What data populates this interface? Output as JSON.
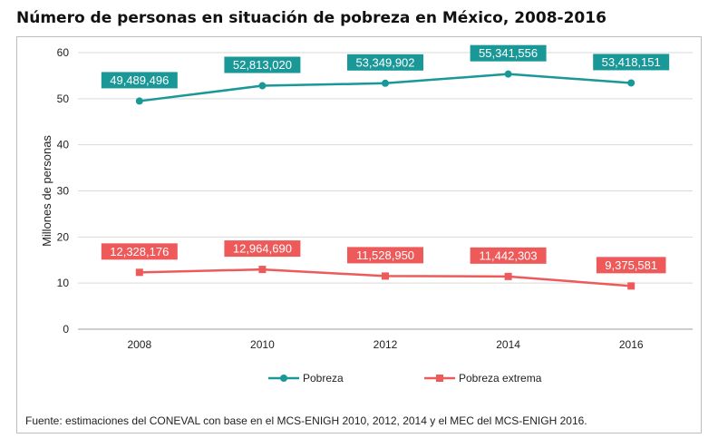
{
  "title": "Número de personas en situación de pobreza en México, 2008-2016",
  "source": "Fuente: estimaciones del CONEVAL con base en el MCS-ENIGH 2010, 2012, 2014 y el MEC del MCS-ENIGH 2016.",
  "chart_data": {
    "type": "line",
    "title": "Número de personas en situación de pobreza en México, 2008-2016",
    "xlabel": "",
    "ylabel": "Millones de personas",
    "categories": [
      "2008",
      "2010",
      "2012",
      "2014",
      "2016"
    ],
    "ylim": [
      0,
      60
    ],
    "yticks": [
      0,
      10,
      20,
      30,
      40,
      50,
      60
    ],
    "grid": true,
    "legend": "bottom",
    "series": [
      {
        "name": "Pobreza",
        "color": "#1a9898",
        "marker": "circle",
        "values": [
          49.489496,
          52.81302,
          53.349902,
          55.341556,
          53.418151
        ],
        "labels": [
          "49,489,496",
          "52,813,020",
          "53,349,902",
          "55,341,556",
          "53,418,151"
        ]
      },
      {
        "name": "Pobreza extrema",
        "color": "#ee5a5a",
        "marker": "square",
        "values": [
          12.328176,
          12.96469,
          11.52895,
          11.442303,
          9.375581
        ],
        "labels": [
          "12,328,176",
          "12,964,690",
          "11,528,950",
          "11,442,303",
          "9,375,581"
        ]
      }
    ]
  }
}
